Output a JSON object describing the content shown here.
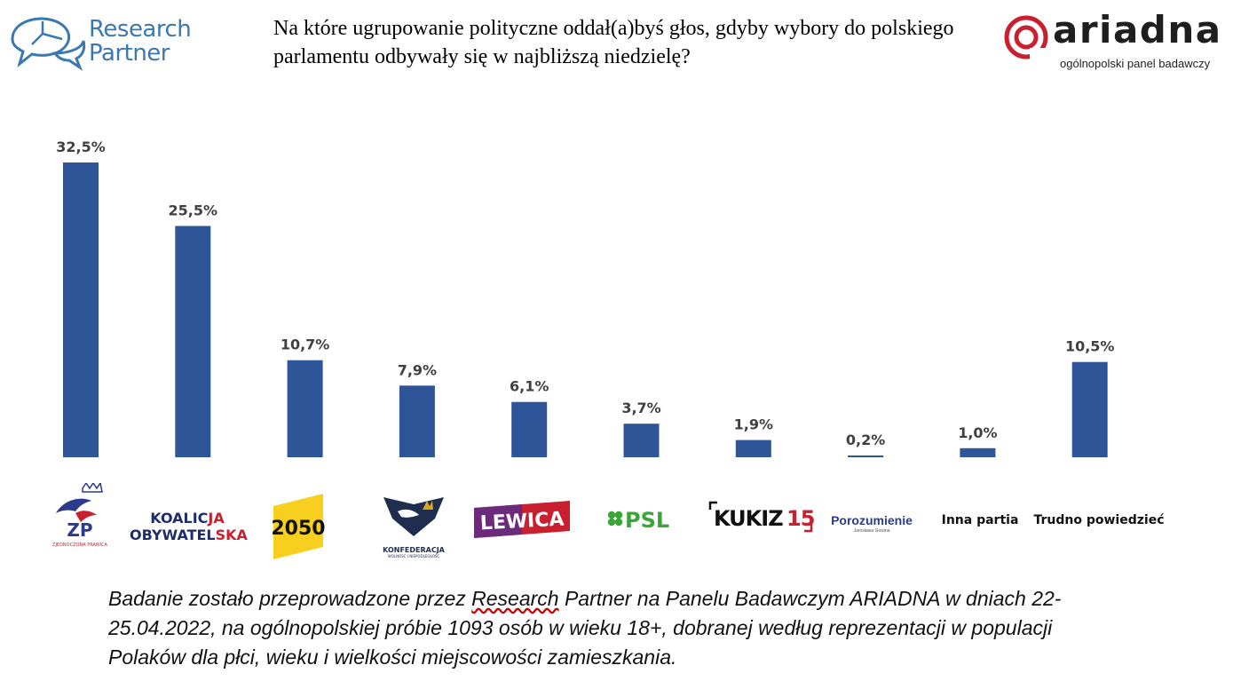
{
  "header": {
    "brand_left_line1": "Research",
    "brand_left_line2": "Partner",
    "question": "Na które ugrupowanie polityczne oddał(a)byś głos, gdyby wybory do polskiego parlamentu odbywały się w najbliższą niedzielę?",
    "brand_right": "ariadna",
    "brand_right_tagline": "ogólnopolski panel badawczy"
  },
  "colors": {
    "bar": "#2e5597",
    "accent": "#c9202f",
    "brand_blue": "#3b78b0"
  },
  "party_labels": {
    "zp_small": "ZJEDNOCZONA PRAWICA",
    "zp_abbr": "ZP",
    "ko_line1_a": "KOALIC",
    "ko_line1_b": "JA",
    "ko_line2_a": "OBYWATEL",
    "ko_line2_b": "SKA",
    "p2050": "2050",
    "konf": "KONFEDERACJA",
    "konf_sub": "WOLNOŚĆ I NIEPODLEGŁOŚĆ",
    "lewica": "LEWICA",
    "psl": "PSL",
    "kukiz": "KUKIZ",
    "kukiz_num": "15",
    "porozumienie": "Porozumienie",
    "porozumienie_sub": "Jarosława Gowina",
    "inna": "Inna partia",
    "trudno": "Trudno powiedzieć"
  },
  "chart_data": {
    "type": "bar",
    "categories": [
      "ZP",
      "Koalicja Obywatelska",
      "2050",
      "Konfederacja",
      "Lewica",
      "PSL",
      "Kukiz15",
      "Porozumienie",
      "Inna partia",
      "Trudno powiedzieć"
    ],
    "values": [
      32.5,
      25.5,
      10.7,
      7.9,
      6.1,
      3.7,
      1.9,
      0.2,
      1.0,
      10.5
    ],
    "labels": [
      "32,5%",
      "25,5%",
      "10,7%",
      "7,9%",
      "6,1%",
      "3,7%",
      "1,9%",
      "0,2%",
      "1,0%",
      "10,5%"
    ],
    "ylim": [
      0,
      32.5
    ]
  },
  "footnote": {
    "part1": "Badanie zostało przeprowadzone przez ",
    "underlined": "Research",
    "part2": " Partner na Panelu Badawczym ARIADNA w dniach 22-25.04.2022, na ogólnopolskiej próbie 1093 osób w wieku 18+, dobranej według reprezentacji w populacji Polaków dla płci, wieku i wielkości miejscowości zamieszkania."
  }
}
